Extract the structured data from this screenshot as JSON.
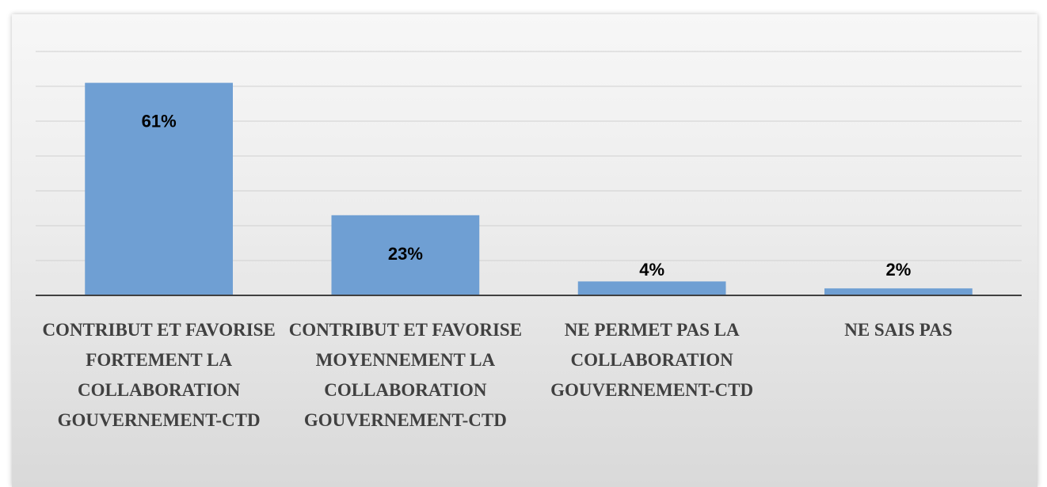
{
  "chart_data": {
    "type": "bar",
    "categories": [
      "CONTRIBUT ET FAVORISE FORTEMENT LA COLLABORATION GOUVERNEMENT-CTD",
      "CONTRIBUT ET FAVORISE MOYENNEMENT LA COLLABORATION GOUVERNEMENT-CTD",
      "NE PERMET PAS LA COLLABORATION GOUVERNEMENT-CTD",
      "NE SAIS PAS"
    ],
    "values": [
      61,
      23,
      4,
      2
    ],
    "value_labels": [
      "61%",
      "23%",
      "4%",
      "2%"
    ],
    "color": "#6f9fd3",
    "ylim": [
      0,
      70
    ],
    "yticks": [
      0,
      10,
      20,
      30,
      40,
      50,
      60,
      70
    ],
    "grid": true,
    "ytick_labels": false
  }
}
